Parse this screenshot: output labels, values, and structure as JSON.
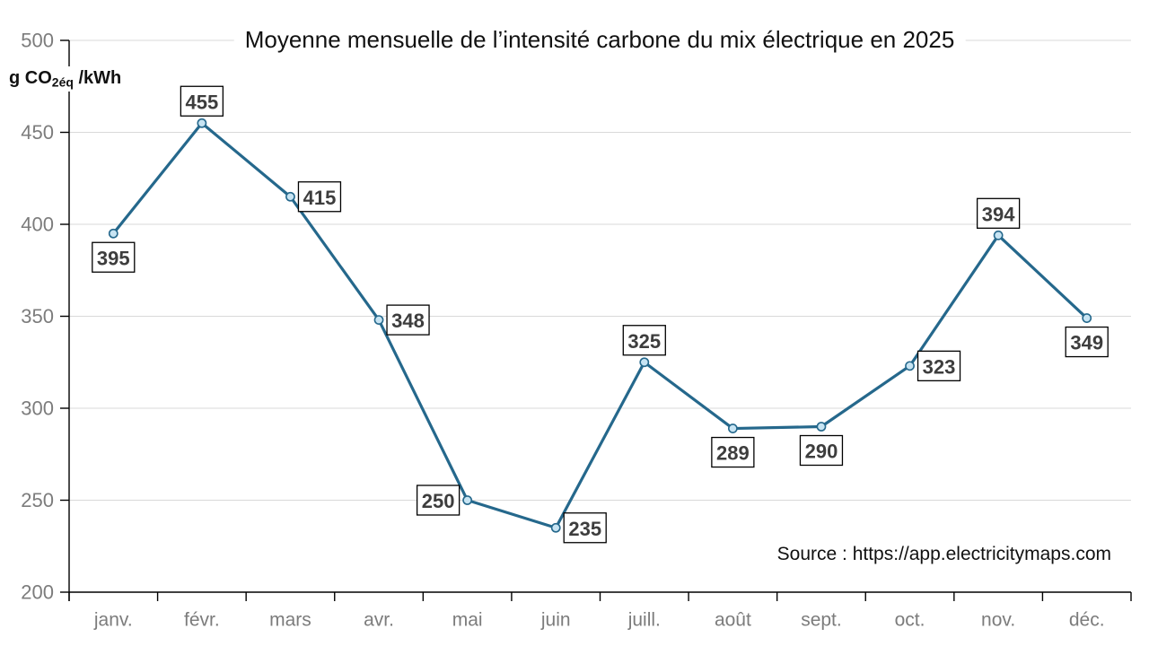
{
  "chart_data": {
    "type": "line",
    "title": "Moyenne mensuelle de l’intensité carbone du mix électrique en 2025",
    "y_axis_unit": {
      "prefix": "g CO",
      "subscript": "2éq",
      "suffix": " /kWh"
    },
    "categories": [
      "janv.",
      "févr.",
      "mars",
      "avr.",
      "mai",
      "juin",
      "juill.",
      "août",
      "sept.",
      "oct.",
      "nov.",
      "déc."
    ],
    "values": [
      395,
      455,
      415,
      348,
      250,
      235,
      325,
      289,
      290,
      323,
      394,
      349
    ],
    "label_placements": [
      "below",
      "above",
      "right",
      "right",
      "left",
      "right",
      "above",
      "below",
      "below",
      "right",
      "above",
      "below"
    ],
    "ylim": [
      200,
      500
    ],
    "ytick_step": 50,
    "grid": "horizontal-on",
    "legend": "none",
    "source_note": "Source : https://app.electricitymaps.com",
    "colors": {
      "line": "#25688c",
      "marker_fill": "#c7e4f3",
      "gridline": "#d9d9d9",
      "axis": "#000000",
      "tick_label": "#7c7c7c",
      "data_label_text": "#3d3d3d",
      "data_label_border": "#000000",
      "data_label_bg": "#ffffff",
      "title_text": "#111111",
      "source_text": "#111111"
    }
  }
}
